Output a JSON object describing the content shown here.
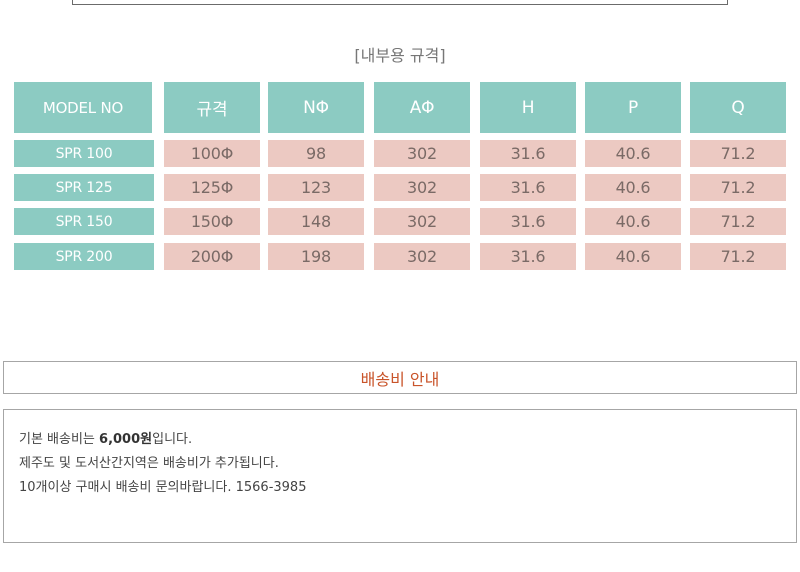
{
  "spec": {
    "title": "[내부용 규격]",
    "headers": [
      "MODEL NO",
      "규격",
      "NΦ",
      "AΦ",
      "H",
      "P",
      "Q"
    ],
    "rows": [
      {
        "model": "SPR 100",
        "values": [
          "100Φ",
          "98",
          "302",
          "31.6",
          "40.6",
          "71.2"
        ]
      },
      {
        "model": "SPR 125",
        "values": [
          "125Φ",
          "123",
          "302",
          "31.6",
          "40.6",
          "71.2"
        ]
      },
      {
        "model": "SPR 150",
        "values": [
          "150Φ",
          "148",
          "302",
          "31.6",
          "40.6",
          "71.2"
        ]
      },
      {
        "model": "SPR 200",
        "values": [
          "200Φ",
          "198",
          "302",
          "31.6",
          "40.6",
          "71.2"
        ]
      }
    ]
  },
  "shipping": {
    "title": "배송비 안내",
    "line1_prefix": "기본 배송비는 ",
    "line1_fee": "6,000원",
    "line1_suffix": "입니다.",
    "line2": "제주도 및 도서산간지역은 배송비가 추가됩니다.",
    "line3": "10개이상 구매시 배송비 문의바랍니다. 1566-3985"
  },
  "colors": {
    "header_teal": "#8ccbc2",
    "value_pink": "#ecc9c2",
    "shipping_title": "#c9542a"
  }
}
